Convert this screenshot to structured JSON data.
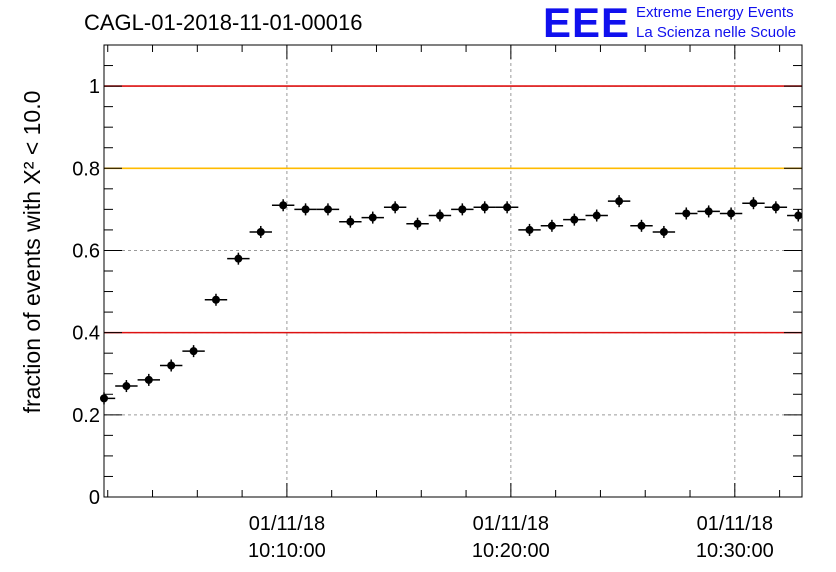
{
  "title": "CAGL-01-2018-11-01-00016",
  "logo": {
    "mark": "EEE",
    "line1": "Extreme Energy Events",
    "line2": "La Scienza nelle Scuole",
    "color": "#1010ee"
  },
  "chart_data": {
    "type": "scatter",
    "title": "CAGL-01-2018-11-01-00016",
    "ylabel": "fraction of events with X² < 10.0",
    "xlabel": "",
    "ylim": [
      0,
      1.1
    ],
    "xlim": [
      "01/11/18 10:01:50",
      "01/11/18 10:33:00"
    ],
    "grid": true,
    "x_ticks": [
      {
        "date": "01/11/18",
        "time": "10:10:00"
      },
      {
        "date": "01/11/18",
        "time": "10:20:00"
      },
      {
        "date": "01/11/18",
        "time": "10:30:00"
      }
    ],
    "y_ticks": [
      "0",
      "0.2",
      "0.4",
      "0.6",
      "0.8",
      "1"
    ],
    "reference_lines": [
      {
        "y": 1.0,
        "color": "#dd1111"
      },
      {
        "y": 0.8,
        "color": "#ffbb00"
      },
      {
        "y": 0.4,
        "color": "#dd1111"
      }
    ],
    "series": [
      {
        "marker": "filled circle with x error bar",
        "color": "#000000",
        "x": [
          "10:01:50",
          "10:02:50",
          "10:03:50",
          "10:04:50",
          "10:05:50",
          "10:06:50",
          "10:07:50",
          "10:08:50",
          "10:09:50",
          "10:10:50",
          "10:11:50",
          "10:12:50",
          "10:13:50",
          "10:14:50",
          "10:15:50",
          "10:16:50",
          "10:17:50",
          "10:18:50",
          "10:19:50",
          "10:20:50",
          "10:21:50",
          "10:22:50",
          "10:23:50",
          "10:24:50",
          "10:25:50",
          "10:26:50",
          "10:27:50",
          "10:28:50",
          "10:29:50",
          "10:30:50",
          "10:31:50",
          "10:32:50"
        ],
        "y": [
          0.24,
          0.27,
          0.285,
          0.32,
          0.355,
          0.48,
          0.58,
          0.645,
          0.71,
          0.7,
          0.7,
          0.67,
          0.68,
          0.705,
          0.665,
          0.685,
          0.7,
          0.705,
          0.705,
          0.65,
          0.66,
          0.675,
          0.685,
          0.72,
          0.66,
          0.645,
          0.69,
          0.695,
          0.69,
          0.715,
          0.705,
          0.685
        ]
      }
    ]
  }
}
